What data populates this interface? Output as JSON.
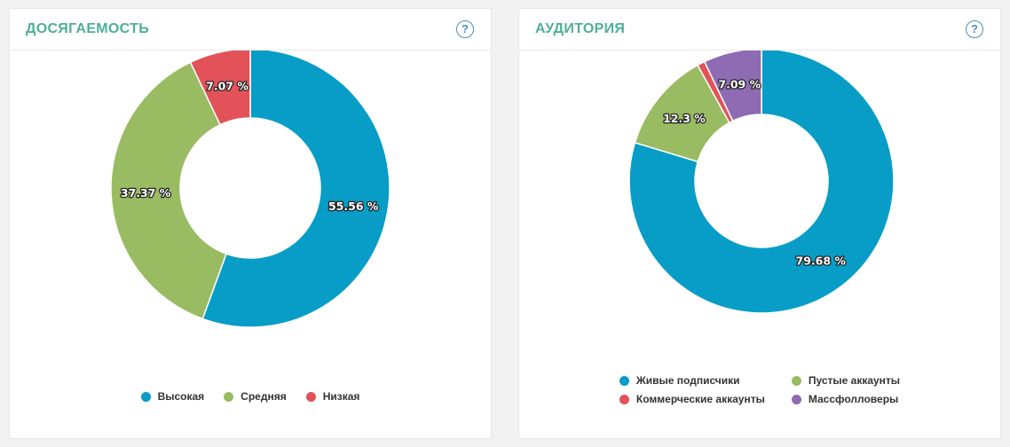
{
  "panels": {
    "reach": {
      "title": "ДОСЯГАЕМОСТЬ",
      "help": "?"
    },
    "audience": {
      "title": "АУДИТОРИЯ",
      "help": "?"
    }
  },
  "colors": {
    "blue": "#079dc7",
    "green": "#99bb62",
    "red": "#e35259",
    "purple": "#8e6bb3",
    "title": "#4fae9a",
    "help": "#4a8fc2"
  },
  "chart_data": [
    {
      "type": "pie",
      "title": "ДОСЯГАЕМОСТЬ",
      "donut": true,
      "start_angle_deg": 0,
      "legend_position": "bottom",
      "slices": [
        {
          "name": "Высокая",
          "value": 55.56,
          "label": "55.56 %",
          "color": "#079dc7"
        },
        {
          "name": "Средняя",
          "value": 37.37,
          "label": "37.37 %",
          "color": "#99bb62"
        },
        {
          "name": "Низкая",
          "value": 7.07,
          "label": "7.07 %",
          "color": "#e35259"
        }
      ]
    },
    {
      "type": "pie",
      "title": "АУДИТОРИЯ",
      "donut": true,
      "start_angle_deg": 0,
      "legend_position": "bottom",
      "slices": [
        {
          "name": "Живые подписчики",
          "value": 79.68,
          "label": "79.68 %",
          "color": "#079dc7"
        },
        {
          "name": "Пустые аккаунты",
          "value": 12.3,
          "label": "12.3 %",
          "color": "#99bb62"
        },
        {
          "name": "Коммерческие аккаунты",
          "value": 0.93,
          "label": "",
          "color": "#e35259"
        },
        {
          "name": "Массфолловеры",
          "value": 7.09,
          "label": "7.09 %",
          "color": "#8e6bb3"
        }
      ]
    }
  ]
}
